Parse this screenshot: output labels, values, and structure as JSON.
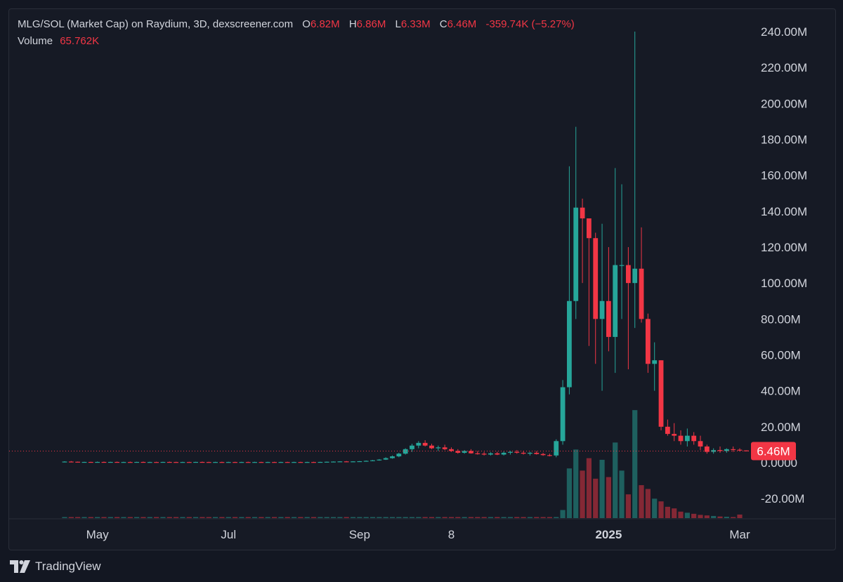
{
  "legend": {
    "title": "MLG/SOL (Market Cap) on Raydium, 3D, dexscreener.com",
    "o_label": "O",
    "o_value": "6.82M",
    "h_label": "H",
    "h_value": "6.86M",
    "l_label": "L",
    "l_value": "6.33M",
    "c_label": "C",
    "c_value": "6.46M",
    "change": "-359.74K (−5.27%)",
    "volume_label": "Volume",
    "volume_value": "65.762K"
  },
  "footer": {
    "brand": "TradingView",
    "logo_icon": "tradingview-logo-icon"
  },
  "colors": {
    "background": "#161a25",
    "up": "#26a69a",
    "down": "#f23645",
    "up_volume": "#26a69a",
    "down_volume": "#f23645",
    "axis_text": "#d1d4dc",
    "price_line": "#f23645"
  },
  "chart_data": {
    "type": "candlestick",
    "title": "MLG/SOL (Market Cap) on Raydium, 3D, dexscreener.com",
    "interval": "3D",
    "y_unit": "market cap (USD)",
    "ylim": [
      -30000000,
      245000000
    ],
    "y_ticks": [
      "240.00M",
      "220.00M",
      "200.00M",
      "180.00M",
      "160.00M",
      "140.00M",
      "120.00M",
      "100.00M",
      "80.00M",
      "60.00M",
      "40.00M",
      "20.00M",
      "0.0000",
      "-20.00M"
    ],
    "y_tick_values": [
      240,
      220,
      200,
      180,
      160,
      140,
      120,
      100,
      80,
      60,
      40,
      20,
      0,
      -20
    ],
    "x_ticks": [
      {
        "label": "May",
        "bold": false,
        "bar": 5
      },
      {
        "label": "Jul",
        "bold": false,
        "bar": 25
      },
      {
        "label": "Sep",
        "bold": false,
        "bar": 45
      },
      {
        "label": "8",
        "bold": false,
        "bar": 59
      },
      {
        "label": "2025",
        "bold": true,
        "bar": 83
      },
      {
        "label": "Mar",
        "bold": false,
        "bar": 103
      }
    ],
    "last_price": {
      "value": 6.46,
      "label": "6.46M"
    },
    "units": "M",
    "candles": [
      [
        0.5,
        0.8,
        0.4,
        0.6
      ],
      [
        0.6,
        0.9,
        0.4,
        0.5
      ],
      [
        0.5,
        0.6,
        0.2,
        0.3
      ],
      [
        0.3,
        0.5,
        0.2,
        0.4
      ],
      [
        0.4,
        0.5,
        0.2,
        0.3
      ],
      [
        0.3,
        0.6,
        0.2,
        0.4
      ],
      [
        0.4,
        0.6,
        0.2,
        0.3
      ],
      [
        0.3,
        0.5,
        0.2,
        0.4
      ],
      [
        0.4,
        0.6,
        0.2,
        0.3
      ],
      [
        0.3,
        0.5,
        0.2,
        0.35
      ],
      [
        0.35,
        0.6,
        0.2,
        0.3
      ],
      [
        0.3,
        0.5,
        0.2,
        0.4
      ],
      [
        0.4,
        0.6,
        0.2,
        0.3
      ],
      [
        0.3,
        0.5,
        0.2,
        0.35
      ],
      [
        0.35,
        0.5,
        0.2,
        0.3
      ],
      [
        0.3,
        0.5,
        0.2,
        0.4
      ],
      [
        0.4,
        0.6,
        0.2,
        0.35
      ],
      [
        0.35,
        0.5,
        0.2,
        0.3
      ],
      [
        0.3,
        0.5,
        0.2,
        0.35
      ],
      [
        0.35,
        0.5,
        0.2,
        0.3
      ],
      [
        0.3,
        0.5,
        0.2,
        0.4
      ],
      [
        0.4,
        0.6,
        0.25,
        0.35
      ],
      [
        0.35,
        0.5,
        0.2,
        0.3
      ],
      [
        0.3,
        0.5,
        0.2,
        0.35
      ],
      [
        0.35,
        0.55,
        0.2,
        0.3
      ],
      [
        0.3,
        0.5,
        0.2,
        0.35
      ],
      [
        0.35,
        0.5,
        0.2,
        0.3
      ],
      [
        0.3,
        0.5,
        0.2,
        0.35
      ],
      [
        0.35,
        0.55,
        0.2,
        0.3
      ],
      [
        0.3,
        0.5,
        0.2,
        0.35
      ],
      [
        0.35,
        0.5,
        0.2,
        0.3
      ],
      [
        0.3,
        0.5,
        0.2,
        0.35
      ],
      [
        0.35,
        0.5,
        0.2,
        0.3
      ],
      [
        0.3,
        0.5,
        0.2,
        0.35
      ],
      [
        0.35,
        0.5,
        0.2,
        0.3
      ],
      [
        0.3,
        0.5,
        0.2,
        0.35
      ],
      [
        0.35,
        0.5,
        0.2,
        0.3
      ],
      [
        0.3,
        0.5,
        0.2,
        0.35
      ],
      [
        0.35,
        0.5,
        0.2,
        0.3
      ],
      [
        0.3,
        0.5,
        0.2,
        0.4
      ],
      [
        0.4,
        0.6,
        0.3,
        0.5
      ],
      [
        0.5,
        0.7,
        0.4,
        0.6
      ],
      [
        0.6,
        0.8,
        0.5,
        0.7
      ],
      [
        0.7,
        0.9,
        0.5,
        0.6
      ],
      [
        0.6,
        0.8,
        0.5,
        0.7
      ],
      [
        0.7,
        0.9,
        0.6,
        0.8
      ],
      [
        0.8,
        1.2,
        0.7,
        1.0
      ],
      [
        1.0,
        1.5,
        0.8,
        1.3
      ],
      [
        1.3,
        2.0,
        1.1,
        1.7
      ],
      [
        1.7,
        3.0,
        1.5,
        2.5
      ],
      [
        2.5,
        4.0,
        2.2,
        3.5
      ],
      [
        3.5,
        5.5,
        3.0,
        5.0
      ],
      [
        5.0,
        8.0,
        4.5,
        7.5
      ],
      [
        7.5,
        10.5,
        6.0,
        9.5
      ],
      [
        9.5,
        12.0,
        8.0,
        11.0
      ],
      [
        11.0,
        12.5,
        9.0,
        9.5
      ],
      [
        9.5,
        10.5,
        7.5,
        8.0
      ],
      [
        8.0,
        9.5,
        6.5,
        8.5
      ],
      [
        8.5,
        10.0,
        7.0,
        7.5
      ],
      [
        7.5,
        8.5,
        6.0,
        6.5
      ],
      [
        6.5,
        7.5,
        5.0,
        5.5
      ],
      [
        5.5,
        7.0,
        5.0,
        6.5
      ],
      [
        6.5,
        7.5,
        5.0,
        5.2
      ],
      [
        5.2,
        6.5,
        4.5,
        5.0
      ],
      [
        5.0,
        6.0,
        4.0,
        4.5
      ],
      [
        4.5,
        5.8,
        4.0,
        5.2
      ],
      [
        5.2,
        6.0,
        4.2,
        4.5
      ],
      [
        4.5,
        6.2,
        4.0,
        5.5
      ],
      [
        5.5,
        6.5,
        4.5,
        6.0
      ],
      [
        6.0,
        7.0,
        5.0,
        5.5
      ],
      [
        5.5,
        6.5,
        4.5,
        5.0
      ],
      [
        5.0,
        6.0,
        4.0,
        5.5
      ],
      [
        5.5,
        6.5,
        4.5,
        4.8
      ],
      [
        4.8,
        5.5,
        3.8,
        4.2
      ],
      [
        4.2,
        5.0,
        3.5,
        4.0
      ],
      [
        4.0,
        13.0,
        3.0,
        12.0
      ],
      [
        12.0,
        46.0,
        10.0,
        42.0
      ],
      [
        42.0,
        165.0,
        38.0,
        90.0
      ],
      [
        90.0,
        187.0,
        80.0,
        142.0
      ],
      [
        142.0,
        147.0,
        100.0,
        136.0
      ],
      [
        136.0,
        126.0,
        65.0,
        125.0
      ],
      [
        125.0,
        128.0,
        55.0,
        80.0
      ],
      [
        80.0,
        133.0,
        40.0,
        90.0
      ],
      [
        90.0,
        120.0,
        62.0,
        70.0
      ],
      [
        70.0,
        164.0,
        50.0,
        110.0
      ],
      [
        110.0,
        155.0,
        80.0,
        110.0
      ],
      [
        110.0,
        120.0,
        52.0,
        100.0
      ],
      [
        100.0,
        240.0,
        75.0,
        108.0
      ],
      [
        108.0,
        131.0,
        78.0,
        80.0
      ],
      [
        80.0,
        83.0,
        50.0,
        55.0
      ],
      [
        55.0,
        67.0,
        40.0,
        57.0
      ],
      [
        57.0,
        57.0,
        18.0,
        20.0
      ],
      [
        20.0,
        24.0,
        15.0,
        16.0
      ],
      [
        16.0,
        22.0,
        12.0,
        15.0
      ],
      [
        15.0,
        18.0,
        10.0,
        12.0
      ],
      [
        12.0,
        19.0,
        9.0,
        15.0
      ],
      [
        15.0,
        17.0,
        10.0,
        12.0
      ],
      [
        12.0,
        15.0,
        7.0,
        9.0
      ],
      [
        9.0,
        10.0,
        5.0,
        6.0
      ],
      [
        6.0,
        8.0,
        5.0,
        7.0
      ],
      [
        7.0,
        9.0,
        5.5,
        6.5
      ],
      [
        6.5,
        8.0,
        5.5,
        7.5
      ],
      [
        7.5,
        9.0,
        6.0,
        7.2
      ],
      [
        7.2,
        8.0,
        6.2,
        6.82
      ],
      [
        6.82,
        6.86,
        6.33,
        6.46
      ]
    ],
    "volumes_k": [
      2,
      2,
      1,
      1,
      1,
      1,
      1,
      1,
      1,
      1,
      1,
      1,
      1,
      1,
      1,
      1,
      1,
      1,
      1,
      1,
      1,
      1,
      1,
      1,
      1,
      1,
      1,
      1,
      1,
      1,
      1,
      1,
      1,
      1,
      1,
      1,
      1,
      1,
      1,
      1,
      1,
      1,
      1,
      1,
      1,
      1,
      2,
      2,
      3,
      4,
      5,
      6,
      7,
      8,
      6,
      5,
      4,
      4,
      3,
      3,
      3,
      3,
      3,
      3,
      2,
      2,
      2,
      2,
      2,
      2,
      2,
      2,
      2,
      2,
      2,
      20,
      150,
      920,
      1270,
      880,
      1110,
      730,
      1080,
      760,
      1400,
      880,
      440,
      2000,
      610,
      540,
      360,
      310,
      210,
      180,
      120,
      100,
      80,
      60,
      50,
      40,
      30,
      25,
      20,
      66
    ],
    "volume_scale_max_k": 2600
  }
}
